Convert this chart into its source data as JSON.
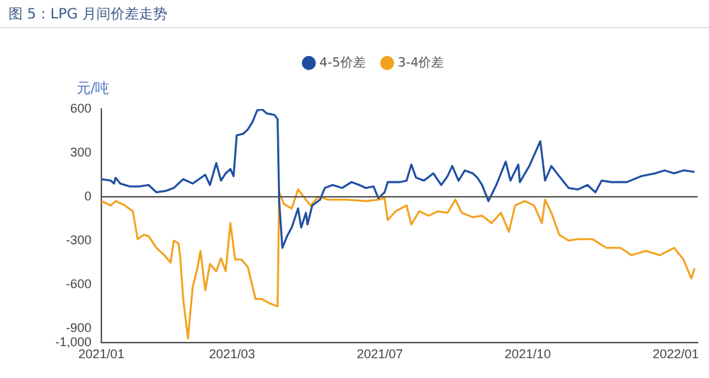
{
  "chart_data": {
    "type": "line",
    "title": "图 5：LPG 月间价差走势",
    "ylabel": "元/吨",
    "xlim": [
      "2021-01-04",
      "2022-01-18"
    ],
    "xticks": [
      {
        "value": "2021-01-04",
        "label": "2021/01"
      },
      {
        "value": "2021-03-28",
        "label": "2021/03"
      },
      {
        "value": "2021-06-30",
        "label": "2021/07"
      },
      {
        "value": "2021-10-02",
        "label": "2021/10"
      },
      {
        "value": "2022-01-04",
        "label": "2022/01"
      }
    ],
    "ylim": [
      -1000,
      600
    ],
    "yticks": [
      600,
      300,
      0,
      -300,
      -600,
      -900,
      {
        "value": -1000,
        "label": "-1,000"
      }
    ],
    "grid": false,
    "legend": "top",
    "marker": "none",
    "line_style": "solid",
    "ref_lines": [
      {
        "axis": "y",
        "value": 0,
        "color": "#555555"
      }
    ],
    "series": [
      {
        "name": "4-5价差",
        "color": "#1d4ea0",
        "x": [
          "2021-01-04",
          "2021-01-10",
          "2021-01-12",
          "2021-01-13",
          "2021-01-16",
          "2021-01-22",
          "2021-01-28",
          "2021-02-03",
          "2021-02-08",
          "2021-02-14",
          "2021-02-19",
          "2021-02-25",
          "2021-03-03",
          "2021-03-11",
          "2021-03-14",
          "2021-03-18",
          "2021-03-21",
          "2021-03-24",
          "2021-03-27",
          "2021-03-29",
          "2021-03-31",
          "2021-04-04",
          "2021-04-07",
          "2021-04-10",
          "2021-04-13",
          "2021-04-16",
          "2021-04-19",
          "2021-04-24",
          "2021-04-26",
          "2021-04-27",
          "2021-04-29",
          "2021-05-02",
          "2021-05-05",
          "2021-05-09",
          "2021-05-11",
          "2021-05-14",
          "2021-05-15",
          "2021-05-18",
          "2021-05-23",
          "2021-05-26",
          "2021-05-31",
          "2021-06-06",
          "2021-06-12",
          "2021-06-17",
          "2021-06-21",
          "2021-06-26",
          "2021-06-29",
          "2021-07-03",
          "2021-07-05",
          "2021-07-13",
          "2021-07-17",
          "2021-07-20",
          "2021-07-23",
          "2021-07-28",
          "2021-08-03",
          "2021-08-08",
          "2021-08-12",
          "2021-08-15",
          "2021-08-19",
          "2021-08-23",
          "2021-08-28",
          "2021-08-31",
          "2021-09-03",
          "2021-09-07",
          "2021-09-12",
          "2021-09-18",
          "2021-09-21",
          "2021-09-26",
          "2021-09-27",
          "2021-10-03",
          "2021-10-10",
          "2021-10-13",
          "2021-10-17",
          "2021-10-22",
          "2021-10-28",
          "2021-11-03",
          "2021-11-09",
          "2021-11-14",
          "2021-11-18",
          "2021-11-24",
          "2021-12-04",
          "2021-12-13",
          "2021-12-22",
          "2021-12-28",
          "2022-01-03",
          "2022-01-09",
          "2022-01-16"
        ],
        "values": [
          120,
          110,
          90,
          130,
          90,
          70,
          70,
          80,
          30,
          40,
          60,
          120,
          90,
          150,
          80,
          230,
          110,
          160,
          190,
          140,
          420,
          430,
          460,
          510,
          590,
          600,
          570,
          560,
          530,
          -30,
          -350,
          -270,
          -210,
          -80,
          -210,
          -110,
          -190,
          -60,
          -20,
          60,
          80,
          60,
          100,
          80,
          60,
          70,
          -10,
          30,
          100,
          100,
          110,
          220,
          130,
          110,
          160,
          80,
          140,
          210,
          110,
          180,
          160,
          130,
          80,
          -30,
          80,
          240,
          110,
          220,
          100,
          210,
          380,
          110,
          210,
          140,
          60,
          50,
          80,
          30,
          110,
          100,
          100,
          140,
          160,
          180,
          160,
          180,
          170
        ]
      },
      {
        "name": "3-4价差",
        "color": "#f3a21f",
        "x": [
          "2021-01-04",
          "2021-01-10",
          "2021-01-13",
          "2021-01-19",
          "2021-01-24",
          "2021-01-27",
          "2021-01-31",
          "2021-02-03",
          "2021-02-08",
          "2021-02-13",
          "2021-02-17",
          "2021-02-19",
          "2021-02-22",
          "2021-02-23",
          "2021-02-25",
          "2021-02-28",
          "2021-03-03",
          "2021-03-06",
          "2021-03-08",
          "2021-03-11",
          "2021-03-14",
          "2021-03-18",
          "2021-03-21",
          "2021-03-24",
          "2021-03-27",
          "2021-03-30",
          "2021-04-03",
          "2021-04-07",
          "2021-04-12",
          "2021-04-16",
          "2021-04-21",
          "2021-04-26",
          "2021-04-27",
          "2021-04-30",
          "2021-05-05",
          "2021-05-09",
          "2021-05-14",
          "2021-05-17",
          "2021-05-22",
          "2021-05-28",
          "2021-06-09",
          "2021-06-21",
          "2021-06-29",
          "2021-07-03",
          "2021-07-05",
          "2021-07-10",
          "2021-07-17",
          "2021-07-20",
          "2021-07-25",
          "2021-07-31",
          "2021-08-06",
          "2021-08-12",
          "2021-08-17",
          "2021-08-21",
          "2021-08-28",
          "2021-09-03",
          "2021-09-09",
          "2021-09-15",
          "2021-09-20",
          "2021-09-24",
          "2021-09-30",
          "2021-10-06",
          "2021-10-11",
          "2021-10-13",
          "2021-10-17",
          "2021-10-22",
          "2021-10-28",
          "2021-11-03",
          "2021-11-12",
          "2021-11-21",
          "2021-11-30",
          "2021-12-07",
          "2021-12-16",
          "2021-12-25",
          "2022-01-03",
          "2022-01-09",
          "2022-01-14",
          "2022-01-16"
        ],
        "values": [
          -30,
          -60,
          -30,
          -60,
          -100,
          -290,
          -260,
          -270,
          -350,
          -400,
          -450,
          -300,
          -320,
          -400,
          -700,
          -970,
          -620,
          -490,
          -370,
          -640,
          -460,
          -510,
          -420,
          -510,
          -180,
          -430,
          -430,
          -480,
          -700,
          -700,
          -730,
          -750,
          30,
          -50,
          -80,
          50,
          -20,
          -60,
          0,
          -20,
          -20,
          -30,
          -20,
          -10,
          -160,
          -100,
          -60,
          -190,
          -100,
          -130,
          -100,
          -110,
          -20,
          -110,
          -140,
          -130,
          -180,
          -110,
          -240,
          -60,
          -30,
          -60,
          -180,
          -20,
          -110,
          -260,
          -300,
          -290,
          -290,
          -350,
          -350,
          -400,
          -370,
          -400,
          -350,
          -430,
          -560,
          -490
        ]
      }
    ]
  }
}
